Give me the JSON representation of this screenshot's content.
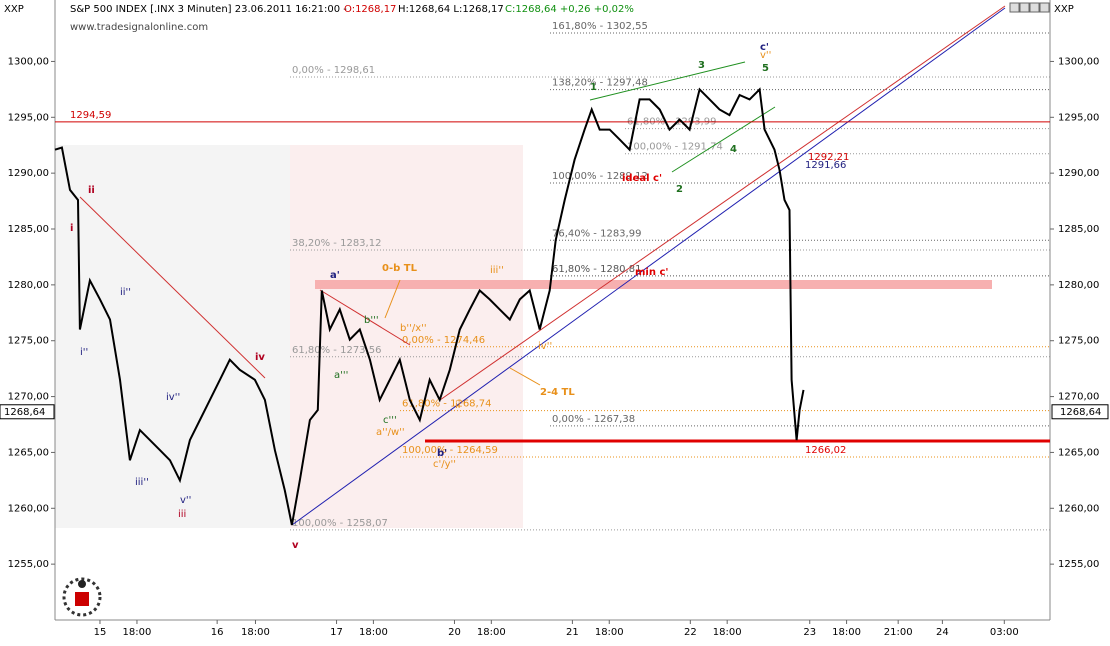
{
  "header": {
    "symbol": "XXP",
    "instrument": "S&P 500 INDEX [.INX  3 Minuten] 23.06.2011 16:21:00 -",
    "open": "O:1268,17",
    "hl": "H:1268,64 L:1268,17",
    "close": "C:1268,64 +0,26 +0,02%",
    "source": "www.tradesignalonline.com",
    "right_symbol": "XXP"
  },
  "chart_data": {
    "type": "line",
    "series": [
      {
        "color": "#000000",
        "x": [
          0,
          0.47,
          1.02,
          1.56,
          1.69,
          2.37,
          3.05,
          3.73,
          4.41,
          5.08,
          5.76,
          6.44,
          7.12,
          7.8,
          8.47,
          9.15,
          9.83,
          10.51,
          11.19,
          11.86,
          12.54,
          13.56,
          14.24,
          14.92,
          15.59,
          16.07,
          16.61,
          17.29,
          17.83,
          18.1,
          18.64,
          19.32,
          20,
          20.68,
          21.36,
          22.03,
          22.71,
          23.39,
          24.07,
          24.75,
          25.42,
          26.1,
          26.78,
          27.46,
          28.14,
          28.81,
          29.49,
          30.17,
          30.85,
          31.53,
          32.2,
          32.88,
          33.56,
          33.97,
          34.58,
          35.25,
          35.93,
          36.41,
          36.95,
          37.63,
          38.31,
          38.98,
          39.66,
          40.34,
          41.02,
          41.69,
          42.37,
          43.05,
          43.73,
          44.41,
          45.08,
          45.76,
          46.44,
          47.12,
          47.8,
          48.14,
          48.81,
          49.15,
          49.49,
          49.83,
          49.97,
          50.31,
          50.51,
          50.78
        ],
        "values": [
          1292.1,
          1292.3,
          1288.5,
          1287.6,
          1276.0,
          1280.4,
          1278.7,
          1276.9,
          1271.5,
          1264.3,
          1267.0,
          1266.1,
          1265.2,
          1264.3,
          1262.5,
          1266.1,
          1267.9,
          1269.7,
          1271.5,
          1273.3,
          1272.4,
          1271.5,
          1269.7,
          1265.2,
          1261.6,
          1258.5,
          1262.5,
          1267.9,
          1268.8,
          1279.5,
          1276.0,
          1277.8,
          1275.1,
          1276.0,
          1273.3,
          1269.7,
          1271.5,
          1273.3,
          1269.7,
          1267.9,
          1271.5,
          1269.7,
          1272.4,
          1276.0,
          1277.8,
          1279.5,
          1278.7,
          1277.8,
          1276.9,
          1278.7,
          1279.5,
          1276.0,
          1279.5,
          1284.0,
          1287.6,
          1291.2,
          1293.9,
          1295.7,
          1293.9,
          1293.9,
          1293.0,
          1292.1,
          1296.6,
          1296.6,
          1295.7,
          1293.9,
          1294.8,
          1293.9,
          1297.5,
          1296.6,
          1295.7,
          1295.2,
          1297.0,
          1296.6,
          1297.5,
          1293.9,
          1292.1,
          1290.3,
          1287.6,
          1286.7,
          1271.5,
          1266.1,
          1268.8,
          1270.6
        ]
      }
    ],
    "xlim": [
      0,
      67.5
    ],
    "ylim": [
      1250,
      1305.5
    ],
    "xticks": [
      {
        "value": 3.05,
        "label": "15"
      },
      {
        "value": 5.56,
        "label": "18:00"
      },
      {
        "value": 11.0,
        "label": "16"
      },
      {
        "value": 13.6,
        "label": "18:00"
      },
      {
        "value": 19.1,
        "label": "17"
      },
      {
        "value": 21.6,
        "label": "18:00"
      },
      {
        "value": 27.1,
        "label": "20"
      },
      {
        "value": 29.6,
        "label": "18:00"
      },
      {
        "value": 35.1,
        "label": "21"
      },
      {
        "value": 37.6,
        "label": "18:00"
      },
      {
        "value": 43.1,
        "label": "22"
      },
      {
        "value": 45.6,
        "label": "18:00"
      },
      {
        "value": 51.2,
        "label": "23"
      },
      {
        "value": 53.7,
        "label": "18:00"
      },
      {
        "value": 57.2,
        "label": "21:00"
      },
      {
        "value": 60.2,
        "label": "24"
      },
      {
        "value": 64.4,
        "label": "03:00"
      }
    ],
    "yticks": [
      {
        "value": 1255,
        "label": "1255,00"
      },
      {
        "value": 1260,
        "label": "1260,00"
      },
      {
        "value": 1265,
        "label": "1265,00"
      },
      {
        "value": 1270,
        "label": "1270,00"
      },
      {
        "value": 1275,
        "label": "1275,00"
      },
      {
        "value": 1280,
        "label": "1280,00"
      },
      {
        "value": 1285,
        "label": "1285,00"
      },
      {
        "value": 1290,
        "label": "1290,00"
      },
      {
        "value": 1295,
        "label": "1295,00"
      },
      {
        "value": 1300,
        "label": "1300,00"
      }
    ],
    "last_price": {
      "value": 1268.64,
      "label": "1268,64"
    },
    "hlines": [
      {
        "value": 1294.59,
        "label": "1294,59",
        "color": "#d00000"
      },
      {
        "value": 1266.02,
        "label": "1266,02",
        "color": "#e00000"
      }
    ],
    "levels": [
      {
        "label": "161,80% - 1302,55",
        "value": 1302.55,
        "color": "#666666"
      },
      {
        "label": "0,00% - 1298,61",
        "value": 1298.61,
        "color": "#999999"
      },
      {
        "label": "138,20% - 1297,48",
        "value": 1297.48,
        "color": "#666666"
      },
      {
        "label": "61,80% - 1293,99",
        "value": 1293.99,
        "color": "#999999"
      },
      {
        "label": "100,00% - 1291,74",
        "value": 1291.74,
        "color": "#999999"
      },
      {
        "label": "100,00% - 1289,12",
        "value": 1289.12,
        "color": "#666666"
      },
      {
        "label": "76,40% - 1283,99",
        "value": 1283.99,
        "color": "#666666"
      },
      {
        "label": "38,20% - 1283,12",
        "value": 1283.12,
        "color": "#999999"
      },
      {
        "label": "61,80% - 1280,81",
        "value": 1280.81,
        "color": "#555555"
      },
      {
        "label": "0,00% - 1274,46",
        "value": 1274.46,
        "color": "#e8901a"
      },
      {
        "label": "61,80% - 1273,56",
        "value": 1273.56,
        "color": "#999999"
      },
      {
        "label": "61,80% - 1268,74",
        "value": 1268.74,
        "color": "#e8901a"
      },
      {
        "label": "0,00% - 1267,38",
        "value": 1267.38,
        "color": "#666666"
      },
      {
        "label": "100,00% - 1264,59",
        "value": 1264.59,
        "color": "#e8901a"
      },
      {
        "label": "100,00% - 1258,07",
        "value": 1258.07,
        "color": "#999999"
      }
    ],
    "annotations": [
      {
        "text": "i",
        "color": "#b00020"
      },
      {
        "text": "ii",
        "color": "#b00020"
      },
      {
        "text": "i''",
        "color": "#202080"
      },
      {
        "text": "ii''",
        "color": "#202080"
      },
      {
        "text": "iii''",
        "color": "#202080"
      },
      {
        "text": "iv''",
        "color": "#202080"
      },
      {
        "text": "v''",
        "color": "#202080"
      },
      {
        "text": "iii",
        "color": "#b00020"
      },
      {
        "text": "iv",
        "color": "#b00020"
      },
      {
        "text": "v",
        "color": "#b00020"
      },
      {
        "text": "a'",
        "color": "#202080"
      },
      {
        "text": "b'",
        "color": "#202080"
      },
      {
        "text": "0-b TL",
        "color": "#e8901a"
      },
      {
        "text": "b''/x''",
        "color": "#e8901a"
      },
      {
        "text": "a''/w''",
        "color": "#e8901a"
      },
      {
        "text": "c'/y''",
        "color": "#e8901a"
      },
      {
        "text": "c'''",
        "color": "#207020"
      },
      {
        "text": "a'''",
        "color": "#207020"
      },
      {
        "text": "b'''",
        "color": "#207020"
      },
      {
        "text": "ii''",
        "color": "#e8901a"
      },
      {
        "text": "iii''",
        "color": "#e8901a"
      },
      {
        "text": "iv''",
        "color": "#e8901a"
      },
      {
        "text": "2-4 TL",
        "color": "#e8901a"
      },
      {
        "text": "min c'",
        "color": "#e00000"
      },
      {
        "text": "ideal c'",
        "color": "#e00000"
      },
      {
        "text": "1",
        "color": "#207020"
      },
      {
        "text": "2",
        "color": "#207020"
      },
      {
        "text": "3",
        "color": "#207020"
      },
      {
        "text": "4",
        "color": "#207020"
      },
      {
        "text": "5",
        "color": "#207020"
      },
      {
        "text": "c'",
        "color": "#202080"
      },
      {
        "text": "v''",
        "color": "#e8901a"
      },
      {
        "text": "1292,21",
        "color": "#d00000"
      },
      {
        "text": "1291,66",
        "color": "#202080"
      }
    ]
  }
}
